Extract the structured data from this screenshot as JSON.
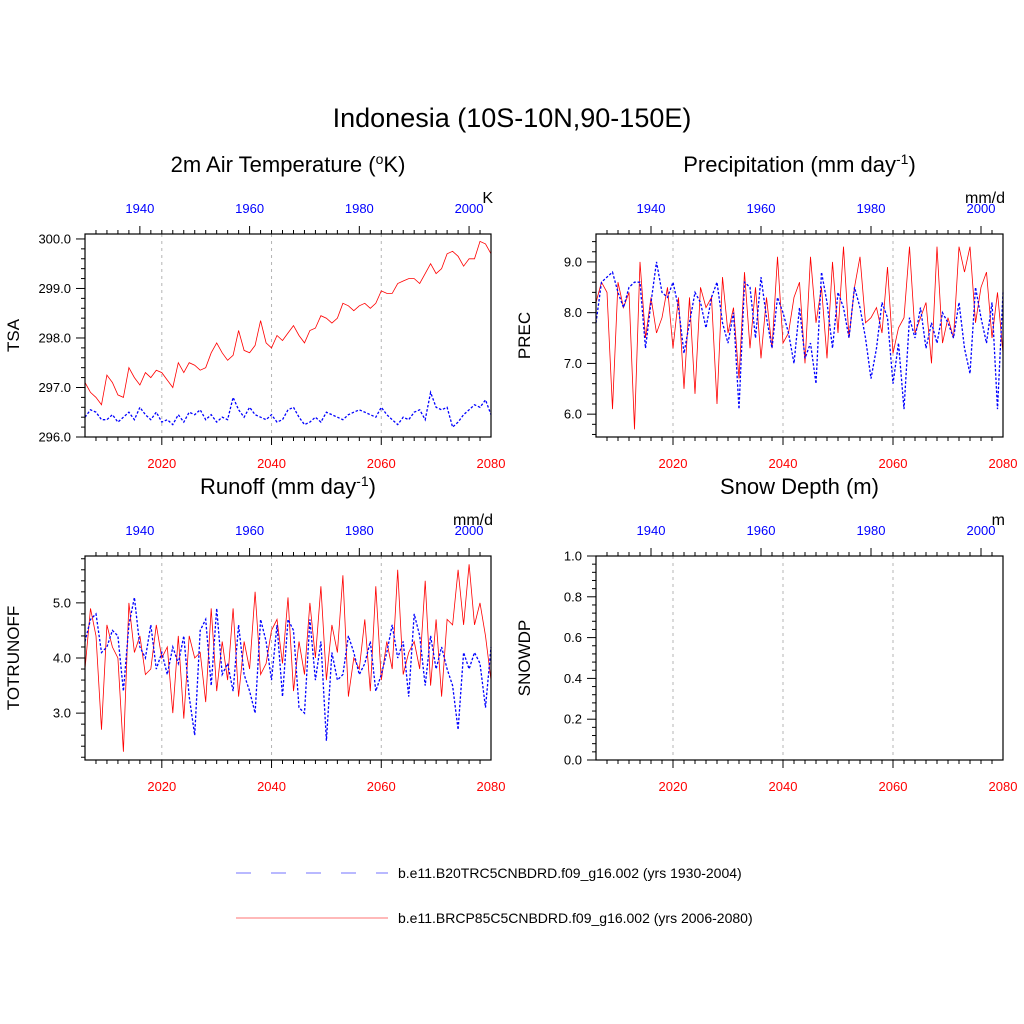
{
  "title": "Indonesia (10S-10N,90-150E)",
  "legend": {
    "entries": [
      {
        "label": "b.e11.B20TRC5CNBDRD.f09_g16.002 (yrs 1930-2004)",
        "color": "#0000ff",
        "style": "dashed"
      },
      {
        "label": "b.e11.BRCP85C5CNBDRD.f09_g16.002 (yrs 2006-2080)",
        "color": "#ff0000",
        "style": "solid"
      }
    ]
  },
  "colors": {
    "historical": "#0000ff",
    "future": "#ff0000",
    "grid": "#b4b4b4"
  },
  "chart_data": [
    {
      "id": "tsa",
      "type": "line",
      "title": "2m Air Temperature (",
      "title_sup": "o",
      "title_end": "K)",
      "ylabel": "TSA",
      "units": "K",
      "x_bottom": {
        "range": [
          2006,
          2080
        ],
        "ticks": [
          "2020",
          "2040",
          "2060",
          "2080"
        ]
      },
      "x_top": {
        "range": [
          1930,
          2004
        ],
        "ticks": [
          "1940",
          "1960",
          "1980",
          "2000"
        ]
      },
      "ylim": [
        296.0,
        300.1
      ],
      "yticks": [
        "296.0",
        "297.0",
        "298.0",
        "299.0",
        "300.0"
      ],
      "grid": "vertical dashed at 2020, 2040, 2060",
      "series": [
        {
          "name": "b.e11.BRCP85C5CNBDRD.f09_g16.002 (yrs 2006-2080)",
          "x_axis": "bottom",
          "x_start": 2006,
          "values": [
            297.1,
            296.9,
            296.8,
            296.65,
            297.25,
            297.1,
            296.85,
            296.8,
            297.4,
            297.2,
            297.05,
            297.3,
            297.2,
            297.35,
            297.3,
            297.15,
            297.0,
            297.5,
            297.3,
            297.5,
            297.45,
            297.35,
            297.4,
            297.7,
            297.9,
            297.7,
            297.55,
            297.65,
            298.15,
            297.75,
            297.7,
            297.85,
            298.35,
            297.9,
            297.8,
            298.05,
            297.95,
            298.1,
            298.25,
            298.05,
            297.9,
            298.15,
            298.2,
            298.45,
            298.4,
            298.3,
            298.4,
            298.7,
            298.65,
            298.55,
            298.65,
            298.7,
            298.6,
            298.7,
            298.95,
            298.9,
            298.9,
            299.1,
            299.15,
            299.2,
            299.2,
            299.1,
            299.3,
            299.5,
            299.3,
            299.4,
            299.7,
            299.75,
            299.65,
            299.45,
            299.6,
            299.6,
            299.95,
            299.9,
            299.7
          ]
        },
        {
          "name": "b.e11.B20TRC5CNBDRD.f09_g16.002 (yrs 1930-2004)",
          "x_axis": "top",
          "x_start": 1930,
          "values": [
            296.4,
            296.55,
            296.5,
            296.35,
            296.35,
            296.45,
            296.3,
            296.4,
            296.5,
            296.35,
            296.6,
            296.45,
            296.35,
            296.5,
            296.3,
            296.35,
            296.25,
            296.45,
            296.3,
            296.5,
            296.45,
            296.55,
            296.35,
            296.45,
            296.3,
            296.4,
            296.35,
            296.8,
            296.55,
            296.4,
            296.6,
            296.45,
            296.4,
            296.35,
            296.45,
            296.3,
            296.35,
            296.55,
            296.6,
            296.4,
            296.25,
            296.3,
            296.4,
            296.3,
            296.5,
            296.45,
            296.4,
            296.35,
            296.45,
            296.5,
            296.55,
            296.5,
            296.45,
            296.4,
            296.6,
            296.45,
            296.35,
            296.25,
            296.4,
            296.35,
            296.5,
            296.55,
            296.35,
            296.9,
            296.6,
            296.55,
            296.6,
            296.2,
            296.3,
            296.45,
            296.55,
            296.65,
            296.6,
            296.75,
            296.45
          ]
        }
      ]
    },
    {
      "id": "prec",
      "type": "line",
      "title": "Precipitation (mm day",
      "title_sup": "-1",
      "title_end": ")",
      "ylabel": "PREC",
      "units": "mm/d",
      "x_bottom": {
        "range": [
          2006,
          2080
        ],
        "ticks": [
          "2020",
          "2040",
          "2060",
          "2080"
        ]
      },
      "x_top": {
        "range": [
          1930,
          2004
        ],
        "ticks": [
          "1940",
          "1960",
          "1980",
          "2000"
        ]
      },
      "ylim": [
        5.55,
        9.55
      ],
      "yticks": [
        "6.0",
        "7.0",
        "8.0",
        "9.0"
      ],
      "grid": "vertical dashed at 2020, 2040, 2060",
      "series": [
        {
          "name": "b.e11.BRCP85C5CNBDRD.f09_g16.002 (yrs 2006-2080)",
          "x_axis": "bottom",
          "x_start": 2006,
          "values": [
            8.2,
            8.6,
            8.4,
            6.1,
            8.6,
            8.1,
            8.4,
            5.7,
            9.0,
            7.5,
            8.3,
            7.6,
            7.9,
            8.5,
            7.3,
            8.3,
            6.5,
            8.3,
            6.4,
            8.5,
            8.1,
            8.3,
            6.2,
            8.7,
            7.6,
            8.1,
            6.7,
            8.8,
            7.3,
            8.5,
            7.1,
            8.3,
            7.3,
            9.1,
            7.4,
            7.6,
            8.3,
            8.6,
            7.0,
            9.1,
            7.8,
            8.5,
            7.1,
            9.0,
            7.6,
            9.3,
            7.5,
            8.5,
            9.1,
            7.8,
            7.9,
            8.1,
            7.6,
            8.9,
            7.2,
            7.7,
            7.9,
            9.3,
            7.6,
            7.9,
            8.2,
            7.0,
            9.3,
            7.4,
            7.9,
            7.5,
            9.3,
            8.8,
            9.3,
            7.8,
            8.5,
            8.8,
            7.5,
            8.4,
            7.2
          ]
        },
        {
          "name": "b.e11.B20TRC5CNBDRD.f09_g16.002 (yrs 1930-2004)",
          "x_axis": "top",
          "x_start": 1930,
          "values": [
            7.8,
            8.6,
            8.7,
            8.8,
            8.4,
            8.1,
            8.5,
            8.6,
            8.6,
            7.3,
            8.2,
            9.0,
            8.4,
            8.3,
            8.6,
            8.1,
            7.2,
            7.8,
            8.4,
            8.2,
            7.7,
            8.3,
            8.6,
            7.8,
            7.4,
            8.0,
            6.1,
            8.6,
            8.5,
            7.5,
            8.7,
            7.9,
            7.3,
            8.3,
            8.0,
            7.6,
            7.0,
            8.1,
            7.1,
            7.4,
            6.6,
            8.8,
            8.2,
            7.3,
            8.4,
            8.1,
            7.5,
            8.5,
            8.1,
            7.5,
            6.7,
            7.3,
            8.2,
            7.9,
            6.6,
            7.4,
            6.1,
            7.9,
            7.5,
            8.1,
            7.3,
            7.8,
            7.4,
            8.0,
            7.8,
            7.5,
            8.2,
            7.3,
            6.8,
            8.5,
            7.9,
            7.4,
            8.2,
            6.1,
            8.4
          ]
        }
      ]
    },
    {
      "id": "runoff",
      "type": "line",
      "title": "Runoff (mm day",
      "title_sup": "-1",
      "title_end": ")",
      "ylabel": "TOTRUNOFF",
      "units": "mm/d",
      "x_bottom": {
        "range": [
          2006,
          2080
        ],
        "ticks": [
          "2020",
          "2040",
          "2060",
          "2080"
        ]
      },
      "x_top": {
        "range": [
          1930,
          2004
        ],
        "ticks": [
          "1940",
          "1960",
          "1980",
          "2000"
        ]
      },
      "ylim": [
        2.15,
        5.85
      ],
      "yticks": [
        "3.0",
        "4.0",
        "5.0"
      ],
      "grid": "vertical dashed at 2020, 2040, 2060",
      "series": [
        {
          "name": "b.e11.BRCP85C5CNBDRD.f09_g16.002 (yrs 2006-2080)",
          "x_axis": "bottom",
          "x_start": 2006,
          "values": [
            3.8,
            4.9,
            4.4,
            2.7,
            4.6,
            4.2,
            4.0,
            2.3,
            5.0,
            4.1,
            4.4,
            3.7,
            3.8,
            4.6,
            4.0,
            4.2,
            3.0,
            4.4,
            2.9,
            4.4,
            4.0,
            4.1,
            3.2,
            4.9,
            3.4,
            4.3,
            3.6,
            4.9,
            3.3,
            4.3,
            3.8,
            5.2,
            3.7,
            3.9,
            4.5,
            4.7,
            3.9,
            5.1,
            3.4,
            4.3,
            3.7,
            5.0,
            4.0,
            5.3,
            3.6,
            4.6,
            4.1,
            5.5,
            3.3,
            4.0,
            3.8,
            4.7,
            3.4,
            5.3,
            3.6,
            4.3,
            3.8,
            5.6,
            3.7,
            4.1,
            4.3,
            3.8,
            5.4,
            3.5,
            4.7,
            3.3,
            4.7,
            4.6,
            5.6,
            4.6,
            5.7,
            4.6,
            5.0,
            4.4,
            3.6
          ]
        },
        {
          "name": "b.e11.B20TRC5CNBDRD.f09_g16.002 (yrs 1930-2004)",
          "x_axis": "top",
          "x_start": 1930,
          "values": [
            4.3,
            4.7,
            4.8,
            4.1,
            4.2,
            4.5,
            4.4,
            3.4,
            4.6,
            5.1,
            4.2,
            4.0,
            4.6,
            3.8,
            4.1,
            3.7,
            4.2,
            3.9,
            4.4,
            3.3,
            2.6,
            4.5,
            4.7,
            3.5,
            4.9,
            3.7,
            3.9,
            3.4,
            4.6,
            3.7,
            3.4,
            3.0,
            4.7,
            4.3,
            3.6,
            4.6,
            3.3,
            4.7,
            4.5,
            3.1,
            3.0,
            4.7,
            3.6,
            4.3,
            2.5,
            4.1,
            3.6,
            3.7,
            4.4,
            4.1,
            3.7,
            3.9,
            4.3,
            3.4,
            3.7,
            4.1,
            4.6,
            4.0,
            4.3,
            3.3,
            4.8,
            4.4,
            3.5,
            4.4,
            3.8,
            4.2,
            3.8,
            3.5,
            2.7,
            4.1,
            3.8,
            4.1,
            3.9,
            3.1,
            4.2
          ]
        }
      ]
    },
    {
      "id": "snowdp",
      "type": "line",
      "title": "Snow Depth (m)",
      "title_sup": "",
      "title_end": "",
      "ylabel": "SNOWDP",
      "units": "m",
      "x_bottom": {
        "range": [
          2006,
          2080
        ],
        "ticks": [
          "2020",
          "2040",
          "2060",
          "2080"
        ]
      },
      "x_top": {
        "range": [
          1930,
          2004
        ],
        "ticks": [
          "1940",
          "1960",
          "1980",
          "2000"
        ]
      },
      "ylim": [
        0.0,
        1.0
      ],
      "yticks": [
        "0.0",
        "0.2",
        "0.4",
        "0.6",
        "0.8",
        "1.0"
      ],
      "grid": "vertical dashed at 2020, 2040, 2060",
      "series": [
        {
          "name": "b.e11.BRCP85C5CNBDRD.f09_g16.002 (yrs 2006-2080)",
          "x_axis": "bottom",
          "x_start": 2006,
          "values": []
        },
        {
          "name": "b.e11.B20TRC5CNBDRD.f09_g16.002 (yrs 1930-2004)",
          "x_axis": "top",
          "x_start": 1930,
          "values": []
        }
      ]
    }
  ]
}
